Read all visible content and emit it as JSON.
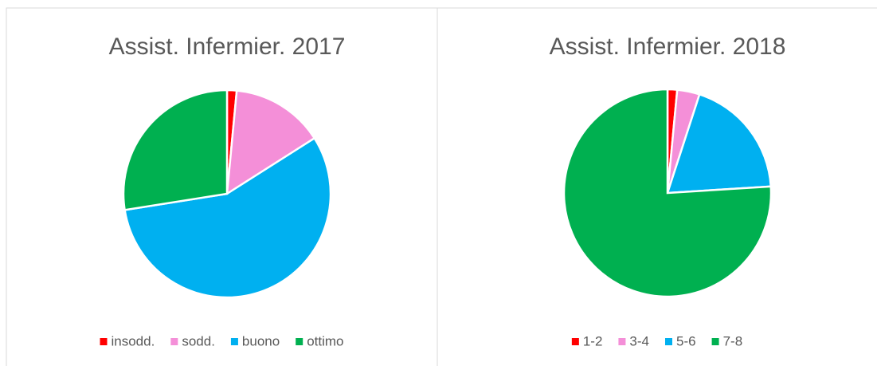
{
  "chart_data": [
    {
      "type": "pie",
      "title": "Assist. Infermier. 2017",
      "categories": [
        "insodd.",
        "sodd.",
        "buono",
        "ottimo"
      ],
      "values": [
        1.5,
        14.5,
        56.5,
        27.5
      ],
      "colors": [
        "#ff0000",
        "#f48fd8",
        "#00b0f0",
        "#00b050"
      ],
      "legend": "bottom"
    },
    {
      "type": "pie",
      "title": "Assist. Infermier. 2018",
      "categories": [
        "1-2",
        "3-4",
        "5-6",
        "7-8"
      ],
      "values": [
        1.5,
        3.5,
        19,
        76
      ],
      "colors": [
        "#ff0000",
        "#f48fd8",
        "#00b0f0",
        "#00b050"
      ],
      "legend": "bottom"
    }
  ]
}
